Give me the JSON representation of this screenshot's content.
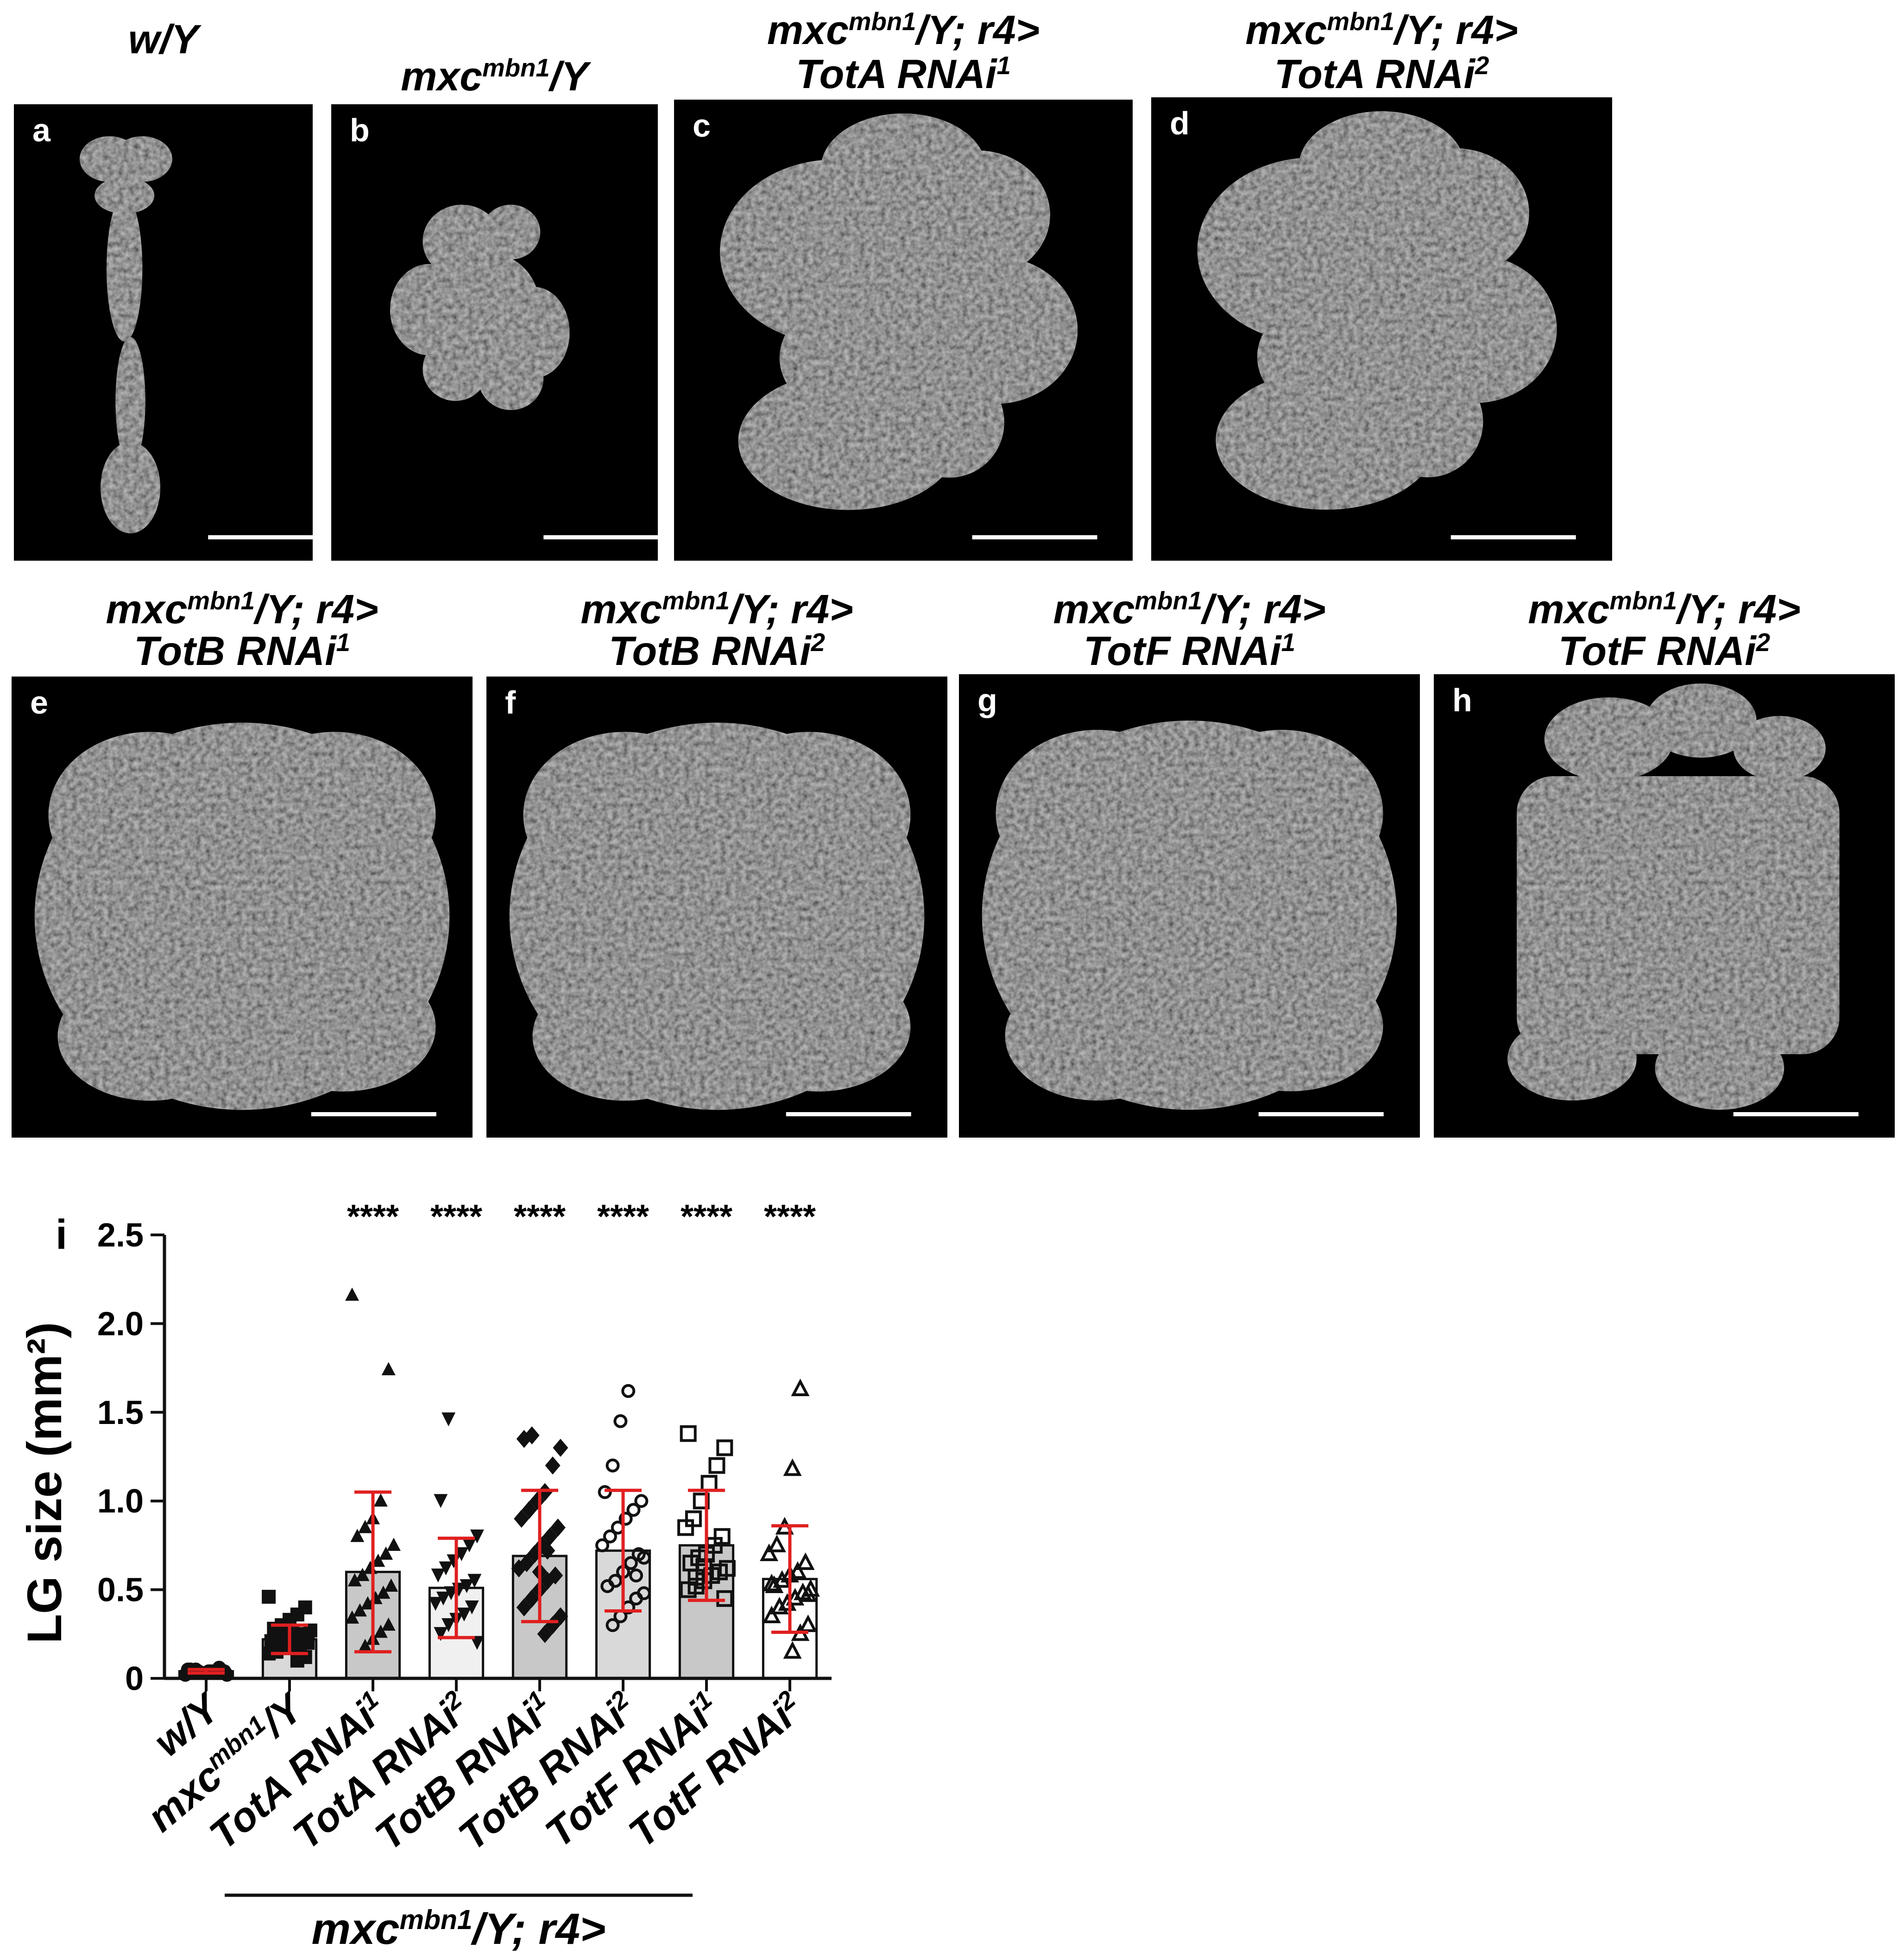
{
  "panels": [
    {
      "letter": "a",
      "title_lines": [
        "w/Y"
      ],
      "shape": "thin"
    },
    {
      "letter": "b",
      "title_lines": [
        "mxc|mbn1|/Y"
      ],
      "shape": "small"
    },
    {
      "letter": "c",
      "title_lines": [
        "mxc|mbn1|/Y; r4>",
        "TotA RNAi|1|"
      ],
      "shape": "lobes"
    },
    {
      "letter": "d",
      "title_lines": [
        "mxc|mbn1|/Y; r4>",
        "TotA RNAi|2|"
      ],
      "shape": "lobes"
    },
    {
      "letter": "e",
      "title_lines": [
        "mxc|mbn1|/Y; r4>",
        "TotB RNAi|1|"
      ],
      "shape": "round"
    },
    {
      "letter": "f",
      "title_lines": [
        "mxc|mbn1|/Y; r4>",
        "TotB RNAi|2|"
      ],
      "shape": "round"
    },
    {
      "letter": "g",
      "title_lines": [
        "mxc|mbn1|/Y; r4>",
        "TotF RNAi|1|"
      ],
      "shape": "round"
    },
    {
      "letter": "h",
      "title_lines": [
        "mxc|mbn1|/Y; r4>",
        "TotF RNAi|2|"
      ],
      "shape": "rect"
    }
  ],
  "chart_data": {
    "type": "bar",
    "panel_letter": "i",
    "ylabel": "LG size (mm²)",
    "ylim": [
      0,
      2.5
    ],
    "yticks": [
      0,
      0.5,
      1.0,
      1.5,
      2.0,
      2.5
    ],
    "ytick_labels": [
      "0",
      "0.5",
      "1.0",
      "1.5",
      "2.0",
      "2.5"
    ],
    "categories": [
      "w/Y",
      "mxc|mbn1|/Y",
      "TotA RNAi|1|",
      "TotA RNAi|2|",
      "TotB RNAi|1|",
      "TotB RNAi|2|",
      "TotF RNAi|1|",
      "TotF RNAi|2|"
    ],
    "bar_fill": [
      "#ffffff",
      "#d9d9d9",
      "#c8c8c8",
      "#f0f0f0",
      "#c8c8c8",
      "#d9d9d9",
      "#c8c8c8",
      "#ffffff"
    ],
    "values": [
      0.04,
      0.22,
      0.6,
      0.51,
      0.69,
      0.72,
      0.75,
      0.56
    ],
    "sd": [
      0.01,
      0.08,
      0.45,
      0.28,
      0.37,
      0.34,
      0.31,
      0.3
    ],
    "marker": [
      "circle-filled",
      "square-filled",
      "triangle-up-filled",
      "triangle-down-filled",
      "diamond-filled",
      "circle-open",
      "square-open",
      "triangle-open"
    ],
    "points": [
      [
        0.02,
        0.03,
        0.03,
        0.04,
        0.04,
        0.04,
        0.05,
        0.05,
        0.03,
        0.04,
        0.06,
        0.02,
        0.05,
        0.04,
        0.03
      ],
      [
        0.1,
        0.12,
        0.14,
        0.15,
        0.17,
        0.18,
        0.19,
        0.2,
        0.21,
        0.22,
        0.23,
        0.24,
        0.25,
        0.27,
        0.28,
        0.3,
        0.33,
        0.36,
        0.4,
        0.46,
        0.16,
        0.21,
        0.26
      ],
      [
        0.18,
        0.22,
        0.26,
        0.3,
        0.34,
        0.38,
        0.42,
        0.45,
        0.48,
        0.52,
        0.55,
        0.58,
        0.62,
        0.66,
        0.7,
        0.75,
        0.8,
        0.85,
        0.9,
        1.0,
        1.74,
        2.16
      ],
      [
        0.2,
        0.25,
        0.3,
        0.33,
        0.36,
        0.4,
        0.42,
        0.45,
        0.48,
        0.5,
        0.52,
        0.55,
        0.58,
        0.62,
        0.66,
        0.7,
        0.75,
        0.8,
        1.0,
        1.46
      ],
      [
        0.25,
        0.3,
        0.35,
        0.4,
        0.45,
        0.5,
        0.55,
        0.58,
        0.62,
        0.65,
        0.7,
        0.75,
        0.8,
        0.85,
        0.9,
        0.95,
        1.0,
        1.05,
        1.2,
        1.3,
        1.35,
        1.37,
        0.6,
        0.72
      ],
      [
        0.3,
        0.35,
        0.4,
        0.45,
        0.48,
        0.52,
        0.55,
        0.6,
        0.65,
        0.7,
        0.75,
        0.8,
        0.85,
        0.9,
        0.95,
        1.0,
        1.05,
        1.2,
        1.45,
        1.62,
        0.58,
        0.68
      ],
      [
        0.45,
        0.5,
        0.52,
        0.55,
        0.58,
        0.6,
        0.62,
        0.65,
        0.68,
        0.7,
        0.75,
        0.8,
        0.85,
        0.9,
        1.0,
        1.1,
        1.2,
        1.3,
        1.38,
        0.57,
        0.63
      ],
      [
        0.15,
        0.25,
        0.3,
        0.35,
        0.4,
        0.42,
        0.45,
        0.48,
        0.5,
        0.52,
        0.55,
        0.58,
        0.6,
        0.65,
        0.7,
        0.75,
        0.85,
        1.18,
        1.63,
        0.47,
        0.53
      ]
    ],
    "significance": [
      "",
      "",
      "****",
      "****",
      "****",
      "****",
      "****",
      "****"
    ],
    "group_label": "mxc|mbn1|/Y; r4>"
  }
}
